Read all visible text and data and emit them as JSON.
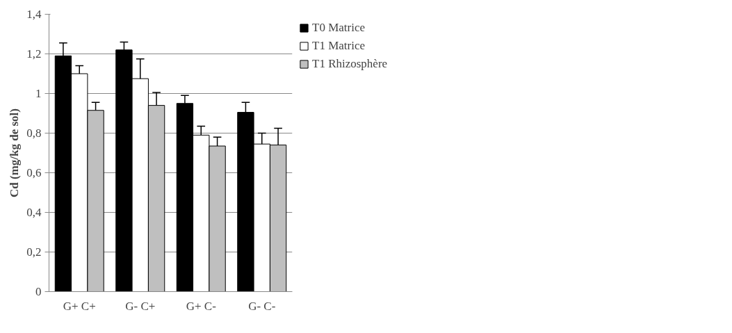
{
  "chart_data": {
    "type": "bar",
    "ylabel": "Cd (mg/kg de sol)",
    "categories": [
      "G+ C+",
      "G- C+",
      "G+ C-",
      "G- C-"
    ],
    "series": [
      {
        "name": "T0 Matrice",
        "color": "#000000",
        "values": [
          1.19,
          1.22,
          0.95,
          0.905
        ],
        "errors": [
          0.065,
          0.04,
          0.04,
          0.05
        ]
      },
      {
        "name": "T1 Matrice",
        "color": "#ffffff",
        "values": [
          1.1,
          1.075,
          0.79,
          0.745
        ],
        "errors": [
          0.04,
          0.1,
          0.045,
          0.055
        ]
      },
      {
        "name": "T1 Rhizosphère",
        "color": "#bfbfbf",
        "values": [
          0.915,
          0.94,
          0.735,
          0.74
        ],
        "errors": [
          0.04,
          0.065,
          0.045,
          0.085
        ]
      }
    ],
    "ylim": [
      0,
      1.4
    ],
    "yticks": [
      {
        "value": 0,
        "label": "0"
      },
      {
        "value": 0.2,
        "label": "0,2"
      },
      {
        "value": 0.4,
        "label": "0,4"
      },
      {
        "value": 0.6,
        "label": "0,6"
      },
      {
        "value": 0.8,
        "label": "0,8"
      },
      {
        "value": 1,
        "label": "1"
      },
      {
        "value": 1.2,
        "label": "1,2"
      },
      {
        "value": 1.4,
        "label": "1,4"
      }
    ],
    "grid": "y",
    "legend": "top right"
  }
}
